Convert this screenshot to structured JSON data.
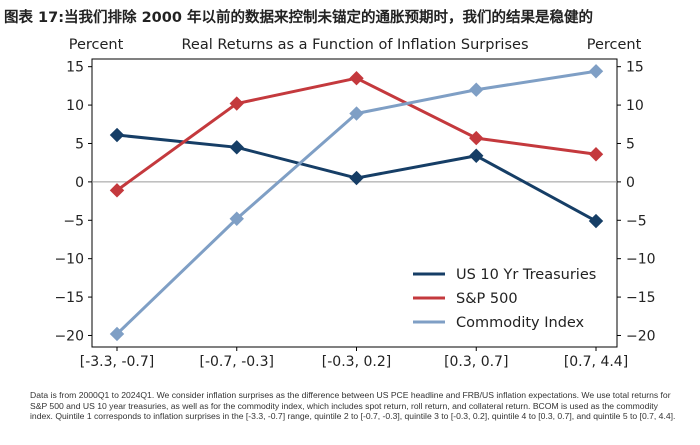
{
  "figure_title": "图表 17:当我们排除 2000 年以前的数据来控制未锚定的通胀预期时，我们的结果是稳健的",
  "chart_data": {
    "type": "line",
    "title": "Real Returns as a Function of Inflation Surprises",
    "ylabel_left": "Percent",
    "ylabel_right": "Percent",
    "categories": [
      "[-3.3, -0.7]",
      "[-0.7, -0.3]",
      "[-0.3, 0.2]",
      "[0.3, 0.7]",
      "[0.7, 4.4]"
    ],
    "ylim": [
      -21.5,
      16
    ],
    "yticks": [
      15,
      10,
      5,
      0,
      -5,
      -10,
      -15,
      -20
    ],
    "zero_line": true,
    "legend_position": "lower-right",
    "series": [
      {
        "name": "US 10 Yr Treasuries",
        "color": "#163e66",
        "values": [
          6.1,
          4.5,
          0.5,
          3.4,
          -5.1
        ]
      },
      {
        "name": "S&P 500",
        "color": "#c4393d",
        "values": [
          -1.1,
          10.2,
          13.5,
          5.7,
          3.6
        ]
      },
      {
        "name": "Commodity Index",
        "color": "#7f9fc5",
        "values": [
          -19.8,
          -4.8,
          8.9,
          12.0,
          14.4
        ]
      }
    ]
  },
  "note": "Data is from 2000Q1 to 2024Q1. We consider inflation surprises as the difference between US PCE headline and FRB/US inflation expectations. We use total returns for S&P 500 and US 10 year treasuries, as well as for the commodity index, which includes spot return, roll return, and collateral return. BCOM is used as the commodity index. Quintile 1 corresponds to inflation surprises in the [-3.3, -0.7] range, quintile 2 to [-0.7, -0.3], quintile 3 to [-0.3, 0.2], quintile 4 to [0.3, 0.7], and quintile 5 to [0.7, 4.4]."
}
